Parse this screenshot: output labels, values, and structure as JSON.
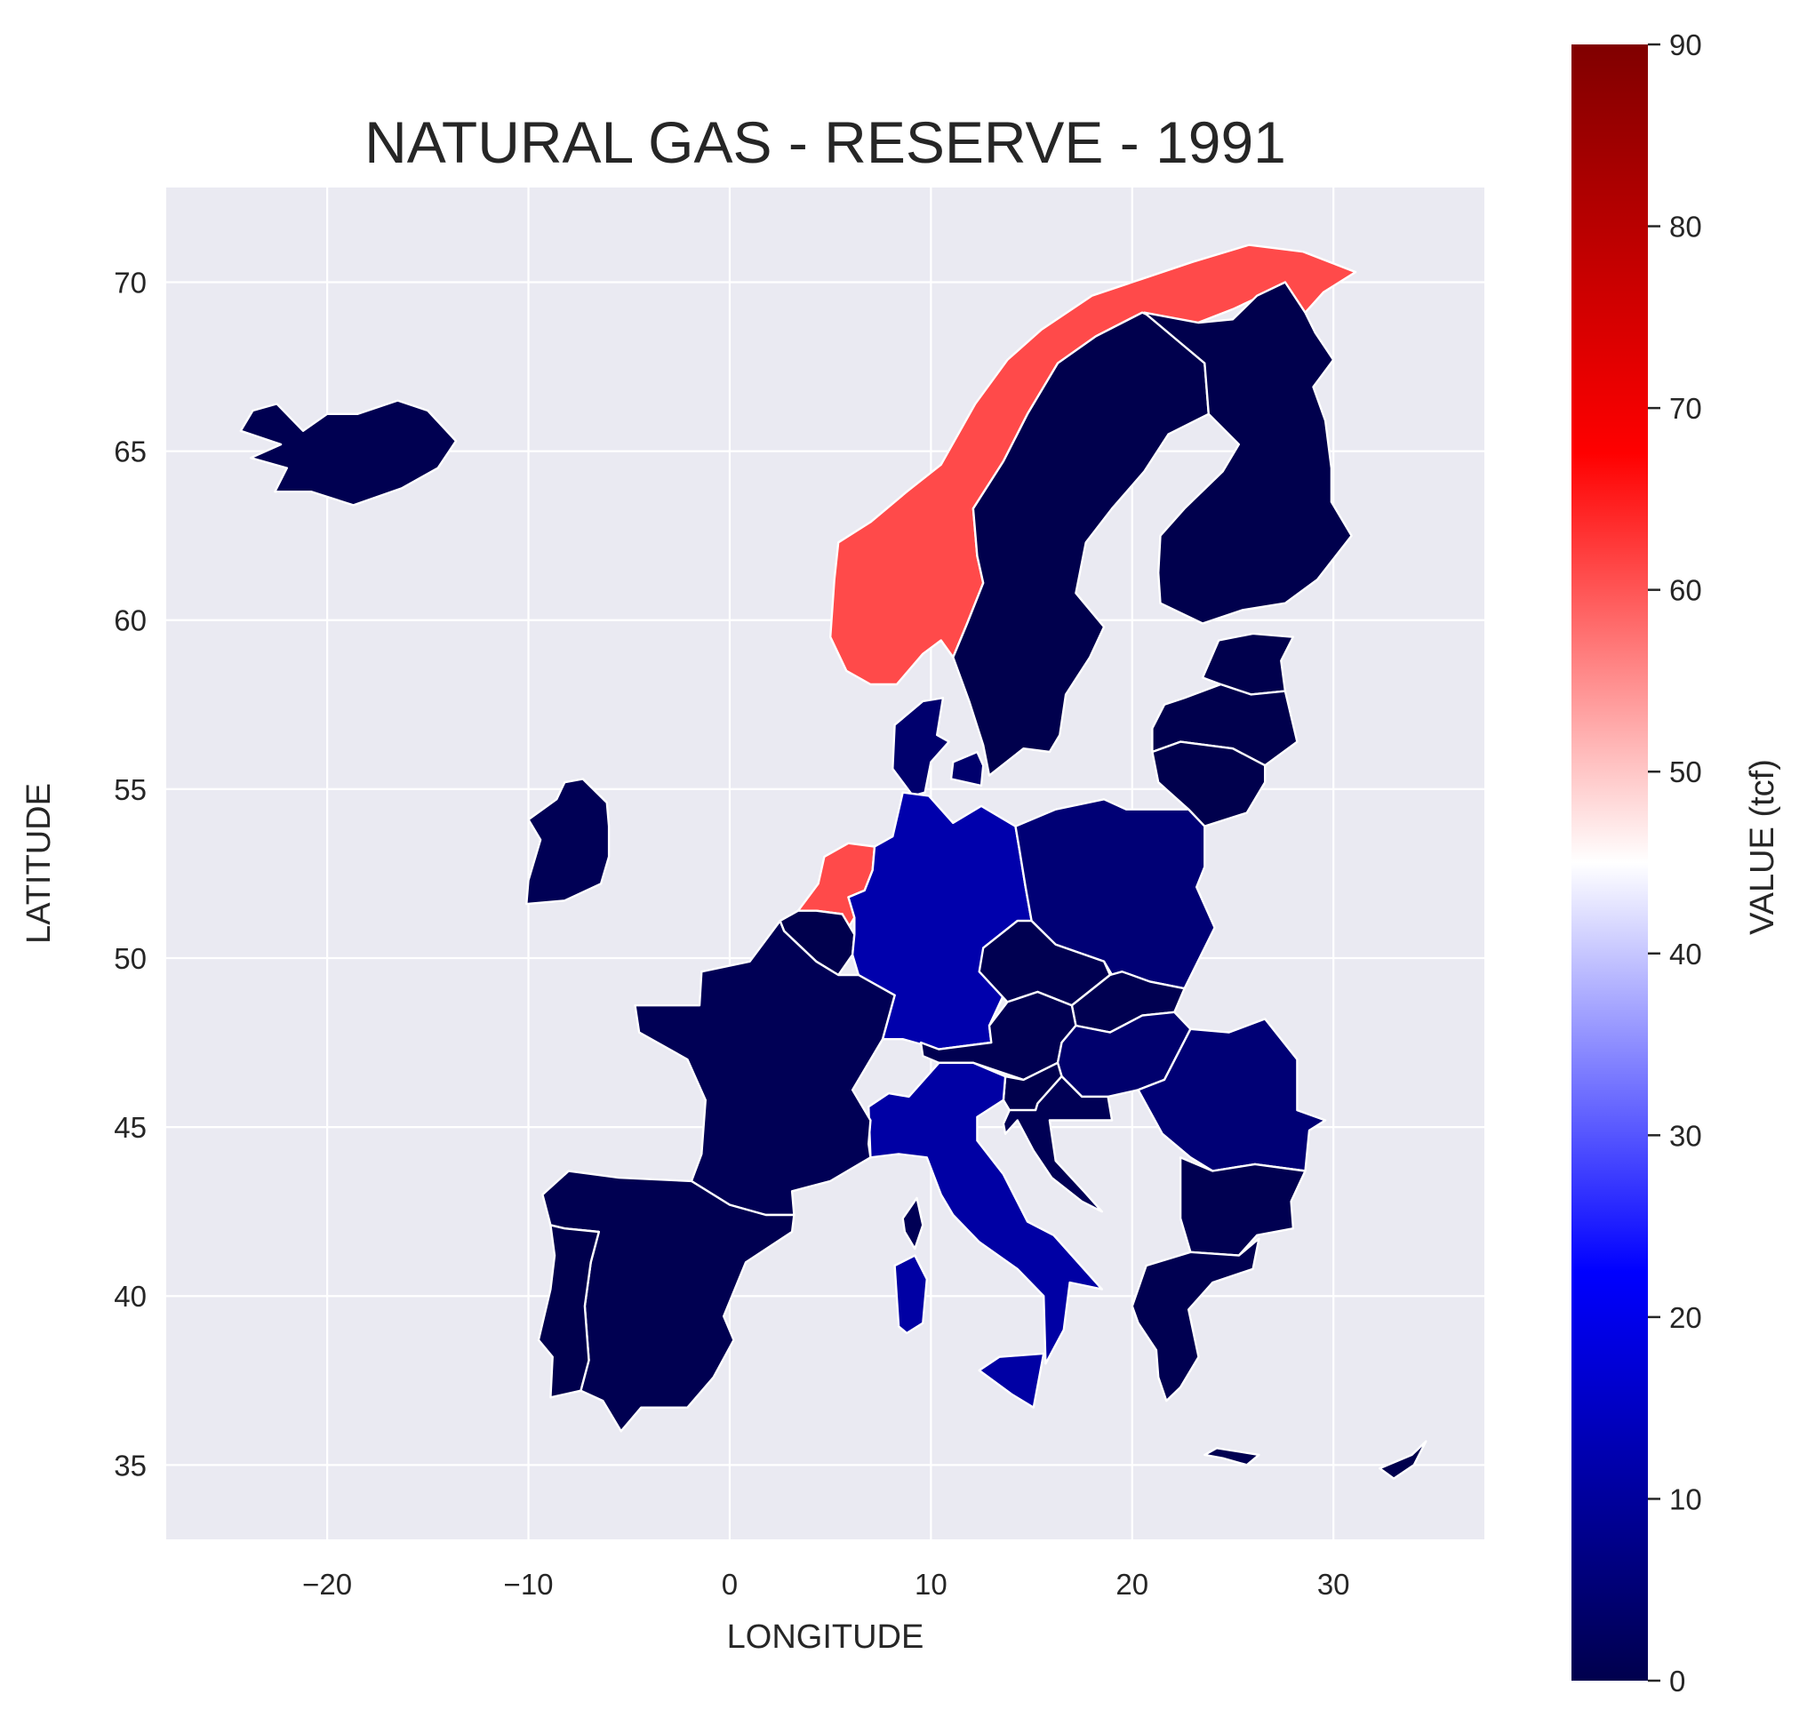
{
  "chart_data": {
    "type": "choropleth",
    "title": "NATURAL GAS - RESERVE - 1991",
    "xlabel": "LONGITUDE",
    "ylabel": "LATITUDE",
    "xlim": [
      -28,
      37.5
    ],
    "ylim": [
      32.8,
      72.8
    ],
    "xticks": [
      -20,
      -10,
      0,
      10,
      20,
      30
    ],
    "xtick_labels": [
      "−20",
      "−10",
      "0",
      "10",
      "20",
      "30"
    ],
    "yticks": [
      35,
      40,
      45,
      50,
      55,
      60,
      65,
      70
    ],
    "ytick_labels": [
      "35",
      "40",
      "45",
      "50",
      "55",
      "60",
      "65",
      "70"
    ],
    "grid": true,
    "background": "#eaeaf2",
    "colorbar": {
      "label": "VALUE (tcf)",
      "min": 0,
      "max": 90,
      "ticks": [
        0,
        10,
        20,
        30,
        40,
        50,
        60,
        70,
        80,
        90
      ],
      "tick_labels": [
        "0",
        "10",
        "20",
        "30",
        "40",
        "50",
        "60",
        "70",
        "80",
        "90"
      ],
      "colormap": "seismic",
      "stops": [
        {
          "offset": 0.0,
          "color": "#00004d"
        },
        {
          "offset": 0.25,
          "color": "#0000ff"
        },
        {
          "offset": 0.5,
          "color": "#ffffff"
        },
        {
          "offset": 0.75,
          "color": "#ff0000"
        },
        {
          "offset": 1.0,
          "color": "#800000"
        }
      ]
    },
    "regions": [
      {
        "name": "Iceland",
        "value": 0.5
      },
      {
        "name": "Norway",
        "value": 61
      },
      {
        "name": "Sweden",
        "value": 0
      },
      {
        "name": "Finland",
        "value": 0
      },
      {
        "name": "Estonia",
        "value": 0
      },
      {
        "name": "Latvia",
        "value": 0
      },
      {
        "name": "Lithuania",
        "value": 0
      },
      {
        "name": "Ireland",
        "value": 1
      },
      {
        "name": "Denmark",
        "value": 4
      },
      {
        "name": "Netherlands",
        "value": 61
      },
      {
        "name": "Belgium",
        "value": 0
      },
      {
        "name": "Germany",
        "value": 12
      },
      {
        "name": "Poland",
        "value": 5
      },
      {
        "name": "Czechia",
        "value": 0.5
      },
      {
        "name": "Slovakia",
        "value": 0.5
      },
      {
        "name": "Austria",
        "value": 0.5
      },
      {
        "name": "Hungary",
        "value": 4
      },
      {
        "name": "Romania",
        "value": 5
      },
      {
        "name": "Bulgaria",
        "value": 0.5
      },
      {
        "name": "Greece",
        "value": 0.5
      },
      {
        "name": "Slovenia",
        "value": 0
      },
      {
        "name": "Croatia",
        "value": 1
      },
      {
        "name": "Italy",
        "value": 11
      },
      {
        "name": "France",
        "value": 1
      },
      {
        "name": "Spain",
        "value": 0.5
      },
      {
        "name": "Portugal",
        "value": 0
      },
      {
        "name": "Cyprus",
        "value": 0
      }
    ]
  }
}
